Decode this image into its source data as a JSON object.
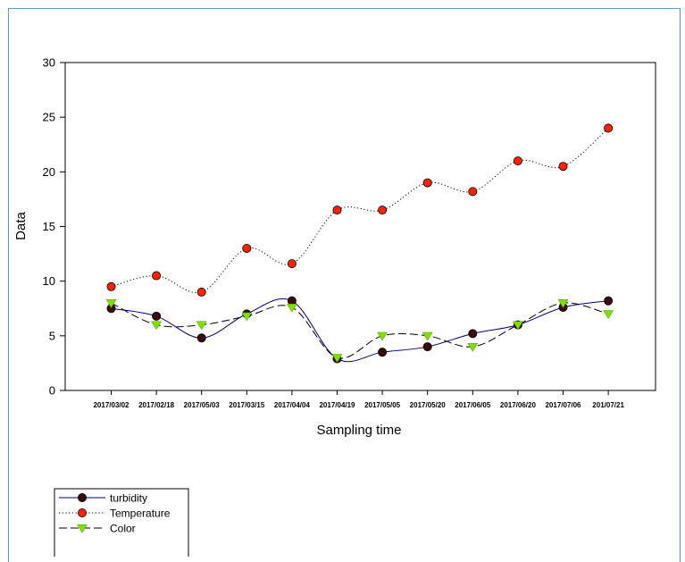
{
  "chart_data": {
    "type": "line",
    "xlabel": "Sampling time",
    "ylabel": "Data",
    "ylim": [
      0,
      30
    ],
    "yticks": [
      0,
      5,
      10,
      15,
      20,
      25,
      30
    ],
    "categories": [
      "2017/03/02",
      "2017/02/18",
      "2017/05/03",
      "2017/03/15",
      "2017/04/04",
      "2017/04/19",
      "2017/05/05",
      "2017/05/20",
      "2017/06/05",
      "2017/06/20",
      "2017/07/06",
      "201/07/21"
    ],
    "grid": false,
    "legend_position": "bottom-left",
    "series": [
      {
        "name": "turbidity",
        "values": [
          7.5,
          6.8,
          4.8,
          7.0,
          8.2,
          2.9,
          3.5,
          4.0,
          5.2,
          6.0,
          7.6,
          8.2
        ],
        "line_color": "#000080",
        "line_style": "solid",
        "marker": "circle",
        "marker_color": "#3a0c0c"
      },
      {
        "name": "Temperature",
        "values": [
          9.5,
          10.5,
          9.0,
          13.0,
          11.6,
          16.5,
          16.5,
          19.0,
          18.2,
          21.0,
          20.5,
          24.0
        ],
        "line_color": "#000000",
        "line_style": "dotted",
        "marker": "circle",
        "marker_color": "#ff2200"
      },
      {
        "name": "Color",
        "values": [
          8.0,
          6.0,
          6.0,
          6.8,
          7.6,
          3.0,
          5.0,
          5.0,
          4.0,
          6.0,
          8.0,
          7.0
        ],
        "line_color": "#000000",
        "line_style": "dashed",
        "marker": "triangle-down",
        "marker_color": "#7fe000"
      }
    ]
  }
}
